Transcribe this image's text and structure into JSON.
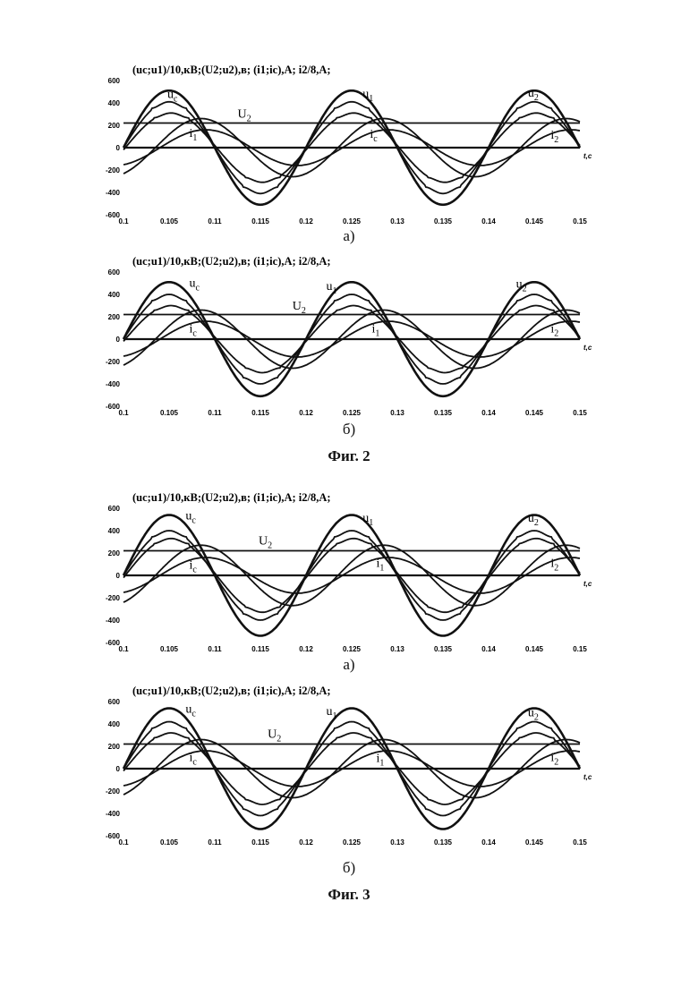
{
  "figures": [
    {
      "caption": "Фиг. 2",
      "sub_captions": [
        "а)",
        "б)"
      ]
    },
    {
      "caption": "Фиг. 3",
      "sub_captions": [
        "а)",
        "б)"
      ]
    }
  ],
  "chart_data": [
    {
      "type": "line",
      "title": "(uc;u1)/10,кВ;(U2;u2),в; (i1;ic),А; i2/8,А;",
      "xlabel": "t,c",
      "ylabel": "",
      "xlim": [
        0.1,
        0.15
      ],
      "ylim": [
        -600,
        600
      ],
      "x_ticks": [
        "0.1",
        "0.105",
        "0.11",
        "0.115",
        "0.12",
        "0.125",
        "0.13",
        "0.135",
        "0.14",
        "0.145",
        "0.15"
      ],
      "y_ticks": [
        "600",
        "400",
        "200",
        "0",
        "-200",
        "-400",
        "-600"
      ],
      "annotations": [
        "uc",
        "u1",
        "U2",
        "u2",
        "i1",
        "ic",
        "i2"
      ],
      "series": [
        {
          "name": "uc",
          "kind": "sine",
          "amplitude": 510,
          "peak_x": 0.105,
          "period": 0.02
        },
        {
          "name": "u1",
          "kind": "stepped",
          "amplitude": 410,
          "peak_x": 0.105,
          "period": 0.02
        },
        {
          "name": "u2",
          "kind": "stepped",
          "amplitude": 310,
          "peak_x": 0.1052,
          "period": 0.02
        },
        {
          "name": "U2",
          "kind": "constant",
          "value": 220
        },
        {
          "name": "i1",
          "kind": "sine",
          "amplitude": 260,
          "peak_x": 0.1085,
          "period": 0.02
        },
        {
          "name": "i2",
          "kind": "sine",
          "amplitude": 160,
          "peak_x": 0.109,
          "period": 0.02
        }
      ]
    },
    {
      "type": "line",
      "title": "(uc;u1)/10,кВ;(U2;u2),в; (i1;ic),А; i2/8,А;",
      "xlabel": "t,c",
      "ylabel": "",
      "xlim": [
        0.1,
        0.15
      ],
      "ylim": [
        -600,
        600
      ],
      "x_ticks": [
        "0.1",
        "0.105",
        "0.11",
        "0.115",
        "0.12",
        "0.125",
        "0.13",
        "0.135",
        "0.14",
        "0.145",
        "0.15"
      ],
      "y_ticks": [
        "600",
        "400",
        "200",
        "0",
        "-200",
        "-400",
        "-600"
      ],
      "annotations": [
        "uc",
        "u1",
        "U2",
        "u2",
        "ic",
        "i1",
        "i2"
      ],
      "series": [
        {
          "name": "uc",
          "kind": "sine",
          "amplitude": 510,
          "peak_x": 0.105,
          "period": 0.02
        },
        {
          "name": "u1",
          "kind": "stepped",
          "amplitude": 400,
          "peak_x": 0.105,
          "period": 0.02
        },
        {
          "name": "u2",
          "kind": "stepped",
          "amplitude": 300,
          "peak_x": 0.1052,
          "period": 0.02
        },
        {
          "name": "U2",
          "kind": "constant",
          "value": 220
        },
        {
          "name": "ic",
          "kind": "sine",
          "amplitude": 260,
          "peak_x": 0.1085,
          "period": 0.02
        },
        {
          "name": "i2",
          "kind": "sine",
          "amplitude": 160,
          "peak_x": 0.109,
          "period": 0.02
        }
      ]
    },
    {
      "type": "line",
      "title": "(uc;u1)/10,кВ;(U2;u2),в; (i1;ic),А; i2/8,А;",
      "xlabel": "t,c",
      "ylabel": "",
      "xlim": [
        0.1,
        0.15
      ],
      "ylim": [
        -600,
        600
      ],
      "x_ticks": [
        "0.1",
        "0.105",
        "0.11",
        "0.115",
        "0.12",
        "0.125",
        "0.13",
        "0.135",
        "0.14",
        "0.145",
        "0.15"
      ],
      "y_ticks": [
        "600",
        "400",
        "200",
        "0",
        "-200",
        "-400",
        "-600"
      ],
      "annotations": [
        "uc",
        "u1",
        "U2",
        "u2",
        "ic",
        "i1",
        "i2"
      ],
      "series": [
        {
          "name": "uc",
          "kind": "sine",
          "amplitude": 540,
          "peak_x": 0.105,
          "period": 0.02
        },
        {
          "name": "u1",
          "kind": "stepped",
          "amplitude": 400,
          "peak_x": 0.105,
          "period": 0.02
        },
        {
          "name": "u2",
          "kind": "stepped",
          "amplitude": 330,
          "peak_x": 0.1052,
          "period": 0.02
        },
        {
          "name": "U2",
          "kind": "constant",
          "value": 220
        },
        {
          "name": "ic",
          "kind": "sine",
          "amplitude": 270,
          "peak_x": 0.1085,
          "period": 0.02
        },
        {
          "name": "i2",
          "kind": "sine",
          "amplitude": 160,
          "peak_x": 0.109,
          "period": 0.02
        }
      ]
    },
    {
      "type": "line",
      "title": "(uc;u1)/10,кВ;(U2;u2),в; (i1;ic),А; i2/8,А;",
      "xlabel": "t,c",
      "ylabel": "",
      "xlim": [
        0.1,
        0.15
      ],
      "ylim": [
        -600,
        600
      ],
      "x_ticks": [
        "0.1",
        "0.105",
        "0.11",
        "0.115",
        "0.12",
        "0.125",
        "0.13",
        "0.135",
        "0.14",
        "0.145",
        "0.15"
      ],
      "y_ticks": [
        "600",
        "400",
        "200",
        "0",
        "-200",
        "-400",
        "-600"
      ],
      "annotations": [
        "uc",
        "u1",
        "U2",
        "u2",
        "ic",
        "i1",
        "i2"
      ],
      "series": [
        {
          "name": "uc",
          "kind": "sine",
          "amplitude": 540,
          "peak_x": 0.105,
          "period": 0.02
        },
        {
          "name": "u1",
          "kind": "stepped",
          "amplitude": 420,
          "peak_x": 0.105,
          "period": 0.02
        },
        {
          "name": "u2",
          "kind": "stepped",
          "amplitude": 320,
          "peak_x": 0.1052,
          "period": 0.02
        },
        {
          "name": "U2",
          "kind": "constant",
          "value": 220
        },
        {
          "name": "ic",
          "kind": "sine",
          "amplitude": 260,
          "peak_x": 0.1085,
          "period": 0.02
        },
        {
          "name": "i2",
          "kind": "sine",
          "amplitude": 160,
          "peak_x": 0.109,
          "period": 0.02
        }
      ]
    }
  ]
}
